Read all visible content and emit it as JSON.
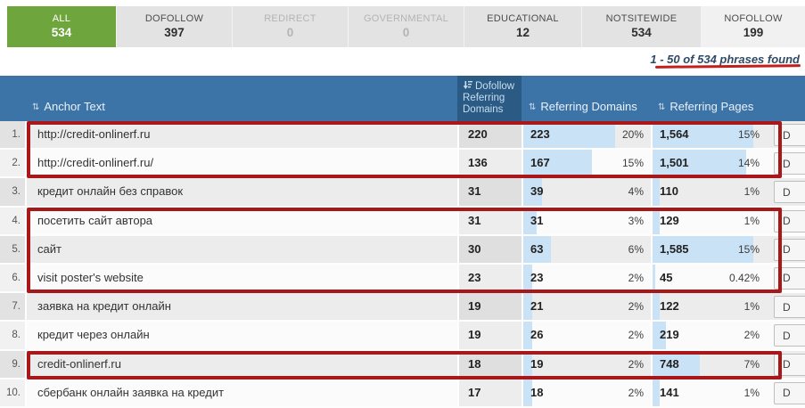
{
  "tabs": [
    {
      "label": "ALL",
      "count": "534",
      "state": "active"
    },
    {
      "label": "DOFOLLOW",
      "count": "397",
      "state": "normal"
    },
    {
      "label": "REDIRECT",
      "count": "0",
      "state": "disabled"
    },
    {
      "label": "GOVERNMENTAL",
      "count": "0",
      "state": "disabled"
    },
    {
      "label": "EDUCATIONAL",
      "count": "12",
      "state": "normal"
    },
    {
      "label": "NOTSITEWIDE",
      "count": "534",
      "state": "normal"
    },
    {
      "label": "NOFOLLOW",
      "count": "199",
      "state": "light"
    }
  ],
  "summary": {
    "text": "1 - 50 of 534 phrases found"
  },
  "table": {
    "columns": {
      "anchor": "Anchor Text",
      "dofollow": "Dofollow Referring Domains",
      "domains": "Referring Domains",
      "pages": "Referring Pages"
    },
    "details_label": "D",
    "rows": [
      {
        "num": "1.",
        "anchor": "http://credit-onlinerf.ru",
        "dofollow": "220",
        "domains": "223",
        "domains_pct": "20%",
        "pages": "1,564",
        "pages_pct": "15%"
      },
      {
        "num": "2.",
        "anchor": "http://credit-onlinerf.ru/",
        "dofollow": "136",
        "domains": "167",
        "domains_pct": "15%",
        "pages": "1,501",
        "pages_pct": "14%"
      },
      {
        "num": "3.",
        "anchor": "кредит онлайн без справок",
        "dofollow": "31",
        "domains": "39",
        "domains_pct": "4%",
        "pages": "110",
        "pages_pct": "1%"
      },
      {
        "num": "4.",
        "anchor": "посетить сайт автора",
        "dofollow": "31",
        "domains": "31",
        "domains_pct": "3%",
        "pages": "129",
        "pages_pct": "1%"
      },
      {
        "num": "5.",
        "anchor": "сайт",
        "dofollow": "30",
        "domains": "63",
        "domains_pct": "6%",
        "pages": "1,585",
        "pages_pct": "15%"
      },
      {
        "num": "6.",
        "anchor": "visit poster's website",
        "dofollow": "23",
        "domains": "23",
        "domains_pct": "2%",
        "pages": "45",
        "pages_pct": "0.42%"
      },
      {
        "num": "7.",
        "anchor": "заявка на кредит онлайн",
        "dofollow": "19",
        "domains": "21",
        "domains_pct": "2%",
        "pages": "122",
        "pages_pct": "1%"
      },
      {
        "num": "8.",
        "anchor": "кредит через онлайн",
        "dofollow": "19",
        "domains": "26",
        "domains_pct": "2%",
        "pages": "219",
        "pages_pct": "2%"
      },
      {
        "num": "9.",
        "anchor": "credit-onlinerf.ru",
        "dofollow": "18",
        "domains": "19",
        "domains_pct": "2%",
        "pages": "748",
        "pages_pct": "7%"
      },
      {
        "num": "10.",
        "anchor": "сбербанк онлайн заявка на кредит",
        "dofollow": "17",
        "domains": "18",
        "domains_pct": "2%",
        "pages": "141",
        "pages_pct": "1%"
      }
    ]
  },
  "annotations": {
    "boxed_row_ranges": [
      [
        1,
        2
      ],
      [
        4,
        6
      ],
      [
        9,
        9
      ]
    ],
    "summary_underlined": true,
    "box_color": "#a8181a"
  },
  "colors": {
    "active_tab_green": "#6fa53d",
    "header_blue": "#3d74a8",
    "sorted_column_blue": "#2b5a84",
    "bar_blue": "#c9e2f5",
    "annotation_red": "#a8181a"
  }
}
